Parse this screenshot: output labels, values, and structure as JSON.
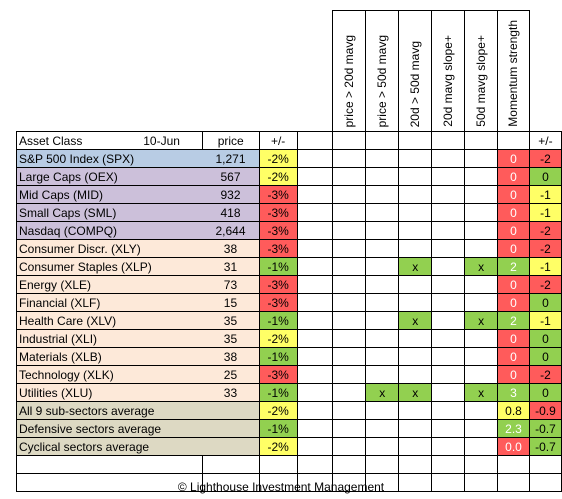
{
  "table": {
    "header": {
      "asset_class": "Asset Class",
      "date": "10-Jun",
      "price": "price",
      "change": "+/-",
      "indicators": [
        "price > 20d mavg",
        "price > 50d mavg",
        "20d > 50d mavg",
        "20d mavg slope+",
        "50d mavg slope+"
      ],
      "momentum": "Momentum strength",
      "momentum_change": "+/-"
    },
    "rows": [
      {
        "name": "S&P 500 Index (SPX)",
        "group": "idx",
        "price": "1,271",
        "chg": "-2%",
        "chg_color": "yellow",
        "ind": [
          "",
          "",
          "",
          "",
          ""
        ],
        "mom": "0",
        "mom_color": "red",
        "mchg": "-2",
        "mchg_color": "red"
      },
      {
        "name": "Large Caps (OEX)",
        "group": "cap",
        "price": "567",
        "chg": "-2%",
        "chg_color": "yellow",
        "ind": [
          "",
          "",
          "",
          "",
          ""
        ],
        "mom": "0",
        "mom_color": "red",
        "mchg": "0",
        "mchg_color": "green"
      },
      {
        "name": "Mid Caps (MID)",
        "group": "cap",
        "price": "932",
        "chg": "-3%",
        "chg_color": "red",
        "ind": [
          "",
          "",
          "",
          "",
          ""
        ],
        "mom": "0",
        "mom_color": "red",
        "mchg": "-1",
        "mchg_color": "yellow"
      },
      {
        "name": "Small Caps (SML)",
        "group": "cap",
        "price": "418",
        "chg": "-3%",
        "chg_color": "red",
        "ind": [
          "",
          "",
          "",
          "",
          ""
        ],
        "mom": "0",
        "mom_color": "red",
        "mchg": "-1",
        "mchg_color": "yellow"
      },
      {
        "name": "Nasdaq (COMPQ)",
        "group": "cap",
        "price": "2,644",
        "chg": "-3%",
        "chg_color": "red",
        "ind": [
          "",
          "",
          "",
          "",
          ""
        ],
        "mom": "0",
        "mom_color": "red",
        "mchg": "-2",
        "mchg_color": "red"
      },
      {
        "name": "Consumer Discr. (XLY)",
        "group": "sec",
        "price": "38",
        "chg": "-3%",
        "chg_color": "red",
        "ind": [
          "",
          "",
          "",
          "",
          ""
        ],
        "mom": "0",
        "mom_color": "red",
        "mchg": "-2",
        "mchg_color": "red"
      },
      {
        "name": "Consumer Staples (XLP)",
        "group": "sec",
        "price": "31",
        "chg": "-1%",
        "chg_color": "green",
        "ind": [
          "",
          "",
          "x",
          "",
          "x"
        ],
        "mom": "2",
        "mom_color": "green",
        "mchg": "-1",
        "mchg_color": "yellow"
      },
      {
        "name": "Energy (XLE)",
        "group": "sec",
        "price": "73",
        "chg": "-3%",
        "chg_color": "red",
        "ind": [
          "",
          "",
          "",
          "",
          ""
        ],
        "mom": "0",
        "mom_color": "red",
        "mchg": "-2",
        "mchg_color": "red"
      },
      {
        "name": "Financial (XLF)",
        "group": "sec",
        "price": "15",
        "chg": "-3%",
        "chg_color": "red",
        "ind": [
          "",
          "",
          "",
          "",
          ""
        ],
        "mom": "0",
        "mom_color": "red",
        "mchg": "0",
        "mchg_color": "green"
      },
      {
        "name": "Health Care (XLV)",
        "group": "sec",
        "price": "35",
        "chg": "-1%",
        "chg_color": "green",
        "ind": [
          "",
          "",
          "x",
          "",
          "x"
        ],
        "mom": "2",
        "mom_color": "green",
        "mchg": "-1",
        "mchg_color": "yellow"
      },
      {
        "name": "Industrial (XLI)",
        "group": "sec",
        "price": "35",
        "chg": "-2%",
        "chg_color": "yellow",
        "ind": [
          "",
          "",
          "",
          "",
          ""
        ],
        "mom": "0",
        "mom_color": "red",
        "mchg": "0",
        "mchg_color": "green"
      },
      {
        "name": "Materials (XLB)",
        "group": "sec",
        "price": "38",
        "chg": "-1%",
        "chg_color": "green",
        "ind": [
          "",
          "",
          "",
          "",
          ""
        ],
        "mom": "0",
        "mom_color": "red",
        "mchg": "0",
        "mchg_color": "green"
      },
      {
        "name": "Technology (XLK)",
        "group": "sec",
        "price": "25",
        "chg": "-3%",
        "chg_color": "red",
        "ind": [
          "",
          "",
          "",
          "",
          ""
        ],
        "mom": "0",
        "mom_color": "red",
        "mchg": "-2",
        "mchg_color": "red"
      },
      {
        "name": "Utilities (XLU)",
        "group": "sec",
        "price": "33",
        "chg": "-1%",
        "chg_color": "green",
        "ind": [
          "",
          "x",
          "x",
          "",
          "x"
        ],
        "mom": "3",
        "mom_color": "green",
        "mchg": "0",
        "mchg_color": "green"
      },
      {
        "name": "All 9 sub-sectors average",
        "group": "avg",
        "price": "",
        "chg": "-2%",
        "chg_color": "yellow",
        "ind": [
          "",
          "",
          "",
          "",
          ""
        ],
        "mom": "0.8",
        "mom_color": "yellow",
        "mchg": "-0.9",
        "mchg_color": "red"
      },
      {
        "name": "Defensive sectors average",
        "group": "avg",
        "price": "",
        "chg": "-1%",
        "chg_color": "green",
        "ind": [
          "",
          "",
          "",
          "",
          ""
        ],
        "mom": "2.3",
        "mom_color": "green",
        "mchg": "-0.7",
        "mchg_color": "green"
      },
      {
        "name": "Cyclical sectors average",
        "group": "avg",
        "price": "",
        "chg": "-2%",
        "chg_color": "yellow",
        "ind": [
          "",
          "",
          "",
          "",
          ""
        ],
        "mom": "0.0",
        "mom_color": "red",
        "mchg": "-0.7",
        "mchg_color": "green"
      }
    ],
    "blank_rows": 2
  },
  "colors": {
    "index": "#b8cce4",
    "caps": "#ccc0da",
    "sectors": "#fde9d9",
    "averages": "#ddd9c3",
    "red": "#ff5b5b",
    "green": "#92d050",
    "yellow": "#ffff66"
  },
  "footer": "© Lighthouse Investment Management"
}
